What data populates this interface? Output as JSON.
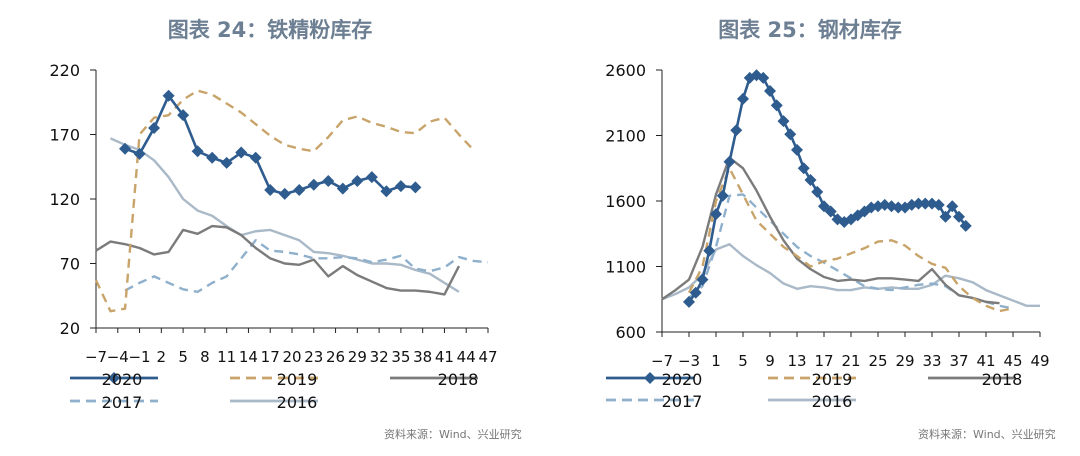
{
  "source_text": "资料来源：Wind、兴业研究",
  "colors": {
    "2020": "#2f5c8f",
    "2019": "#c8a46a",
    "2018": "#7b7b7b",
    "2017": "#8fb0cc",
    "2016": "#a9b9c8",
    "title": "#6d7f93"
  },
  "chart_data": [
    {
      "type": "line",
      "title": "图表 24：铁精粉库存",
      "ylim": [
        20,
        220
      ],
      "yticks": [
        20,
        70,
        120,
        170,
        220
      ],
      "xlim": [
        -7,
        47
      ],
      "xtick_labels": [
        "−7",
        "−4",
        "−1",
        "2",
        "5",
        "8",
        "11",
        "14",
        "17",
        "20",
        "23",
        "26",
        "29",
        "32",
        "35",
        "38",
        "41",
        "44",
        "47"
      ],
      "legend": [
        {
          "name": "2020",
          "label": "2020"
        },
        {
          "name": "2019",
          "label": "2019"
        },
        {
          "name": "2018",
          "label": "2018"
        },
        {
          "name": "2017",
          "label": "2017"
        },
        {
          "name": "2016",
          "label": "2016"
        }
      ],
      "series": [
        {
          "name": "2020",
          "style": "marker",
          "x": [
            -3,
            -1,
            1,
            3,
            5,
            7,
            9,
            11,
            13,
            15,
            17,
            19,
            21,
            23,
            25,
            27,
            29,
            31,
            33,
            35,
            37
          ],
          "y": [
            159,
            155,
            175,
            200,
            185,
            157,
            152,
            148,
            156,
            152,
            127,
            124,
            127,
            131,
            134,
            128,
            134,
            137,
            126,
            130,
            129
          ]
        },
        {
          "name": "2019",
          "style": "dash",
          "x": [
            -7,
            -5,
            -3,
            -1,
            1,
            3,
            5,
            7,
            9,
            11,
            13,
            15,
            17,
            19,
            21,
            23,
            25,
            27,
            29,
            31,
            33,
            35,
            37,
            39,
            41,
            43,
            45
          ],
          "y": [
            57,
            33,
            35,
            170,
            183,
            185,
            197,
            204,
            201,
            194,
            187,
            178,
            169,
            162,
            159,
            157,
            168,
            181,
            184,
            179,
            176,
            172,
            171,
            180,
            183,
            170,
            158
          ]
        },
        {
          "name": "2018",
          "style": "solid",
          "x": [
            -7,
            -5,
            -3,
            -1,
            1,
            3,
            5,
            7,
            9,
            11,
            13,
            15,
            17,
            19,
            21,
            23,
            25,
            27,
            29,
            31,
            33,
            35,
            37,
            39,
            41,
            43
          ],
          "y": [
            80,
            87,
            85,
            82,
            77,
            79,
            96,
            93,
            99,
            98,
            92,
            82,
            74,
            70,
            69,
            73,
            60,
            68,
            61,
            56,
            51,
            49,
            49,
            48,
            46,
            68
          ]
        },
        {
          "name": "2017",
          "style": "dash",
          "x": [
            -3,
            -1,
            1,
            3,
            5,
            7,
            9,
            11,
            13,
            15,
            17,
            19,
            21,
            23,
            25,
            27,
            29,
            31,
            33,
            35,
            37,
            39,
            41,
            43,
            45,
            47
          ],
          "y": [
            49,
            55,
            60,
            55,
            50,
            48,
            55,
            60,
            74,
            88,
            80,
            79,
            77,
            74,
            74,
            75,
            74,
            71,
            73,
            76,
            66,
            64,
            67,
            75,
            72,
            71
          ]
        },
        {
          "name": "2016",
          "style": "solid",
          "x": [
            -5,
            -3,
            -1,
            1,
            3,
            5,
            7,
            9,
            11,
            13,
            15,
            17,
            19,
            21,
            23,
            25,
            27,
            29,
            31,
            33,
            35,
            37,
            39,
            41,
            43
          ],
          "y": [
            167,
            162,
            158,
            150,
            137,
            120,
            111,
            107,
            99,
            92,
            95,
            96,
            92,
            88,
            79,
            78,
            76,
            73,
            70,
            70,
            69,
            65,
            62,
            55,
            48
          ]
        }
      ]
    },
    {
      "type": "line",
      "title": "图表 25：钢材库存",
      "ylim": [
        600,
        2600
      ],
      "yticks": [
        600,
        1100,
        1600,
        2100,
        2600
      ],
      "xlim": [
        -7,
        49
      ],
      "xtick_labels": [
        "−7",
        "−3",
        "1",
        "5",
        "9",
        "13",
        "17",
        "21",
        "25",
        "29",
        "33",
        "37",
        "41",
        "45",
        "49"
      ],
      "legend": [
        {
          "name": "2020",
          "label": "2020"
        },
        {
          "name": "2019",
          "label": "2019"
        },
        {
          "name": "2018",
          "label": "2018"
        },
        {
          "name": "2017",
          "label": "2017"
        },
        {
          "name": "2016",
          "label": "2016"
        }
      ],
      "series": [
        {
          "name": "2020",
          "style": "marker",
          "x": [
            -3,
            -2,
            -1,
            0,
            1,
            2,
            3,
            4,
            5,
            6,
            7,
            8,
            9,
            10,
            11,
            12,
            13,
            14,
            15,
            16,
            17,
            18,
            19,
            20,
            21,
            22,
            23,
            24,
            25,
            26,
            27,
            28,
            29,
            30,
            31,
            32,
            33,
            34,
            35,
            36,
            37,
            38
          ],
          "y": [
            830,
            900,
            1000,
            1220,
            1500,
            1640,
            1900,
            2140,
            2380,
            2540,
            2560,
            2540,
            2440,
            2330,
            2210,
            2110,
            1990,
            1850,
            1760,
            1670,
            1560,
            1520,
            1460,
            1440,
            1460,
            1490,
            1520,
            1550,
            1560,
            1570,
            1560,
            1550,
            1550,
            1570,
            1580,
            1580,
            1580,
            1570,
            1480,
            1560,
            1480,
            1410
          ]
        },
        {
          "name": "2019",
          "style": "dash",
          "x": [
            -3,
            -1,
            1,
            3,
            5,
            7,
            9,
            11,
            13,
            15,
            17,
            19,
            21,
            23,
            25,
            27,
            29,
            31,
            33,
            35,
            37,
            39,
            41,
            43,
            45
          ],
          "y": [
            900,
            1100,
            1600,
            1850,
            1650,
            1450,
            1350,
            1250,
            1180,
            1100,
            1140,
            1160,
            1200,
            1240,
            1290,
            1300,
            1260,
            1180,
            1120,
            1090,
            950,
            860,
            800,
            760,
            780
          ]
        },
        {
          "name": "2018",
          "style": "solid",
          "x": [
            -7,
            -5,
            -3,
            -1,
            1,
            3,
            5,
            7,
            9,
            11,
            13,
            15,
            17,
            19,
            21,
            23,
            25,
            27,
            29,
            31,
            33,
            35,
            37,
            39,
            41,
            43
          ],
          "y": [
            850,
            920,
            1000,
            1250,
            1650,
            1930,
            1850,
            1680,
            1480,
            1300,
            1160,
            1080,
            1020,
            990,
            1000,
            990,
            1010,
            1010,
            1000,
            990,
            1080,
            960,
            880,
            860,
            830,
            820
          ]
        },
        {
          "name": "2017",
          "style": "dash",
          "x": [
            -3,
            -1,
            1,
            3,
            5,
            7,
            9,
            11,
            13,
            15,
            17,
            19,
            21,
            23,
            25,
            27,
            29,
            31,
            33,
            35,
            37,
            39,
            41,
            43,
            45
          ],
          "y": [
            860,
            950,
            1250,
            1640,
            1650,
            1550,
            1450,
            1350,
            1250,
            1180,
            1130,
            1070,
            1010,
            950,
            930,
            920,
            940,
            960,
            970,
            950,
            880,
            860,
            830,
            800,
            780
          ]
        },
        {
          "name": "2016",
          "style": "solid",
          "x": [
            -7,
            -5,
            -3,
            -1,
            1,
            3,
            5,
            7,
            9,
            11,
            13,
            15,
            17,
            19,
            21,
            23,
            25,
            27,
            29,
            31,
            33,
            35,
            37,
            39,
            41,
            43,
            45,
            47,
            49
          ],
          "y": [
            850,
            890,
            940,
            1040,
            1230,
            1270,
            1180,
            1110,
            1050,
            970,
            930,
            950,
            940,
            920,
            920,
            940,
            930,
            940,
            930,
            930,
            960,
            1030,
            1010,
            980,
            920,
            880,
            840,
            800,
            800
          ]
        }
      ]
    }
  ]
}
